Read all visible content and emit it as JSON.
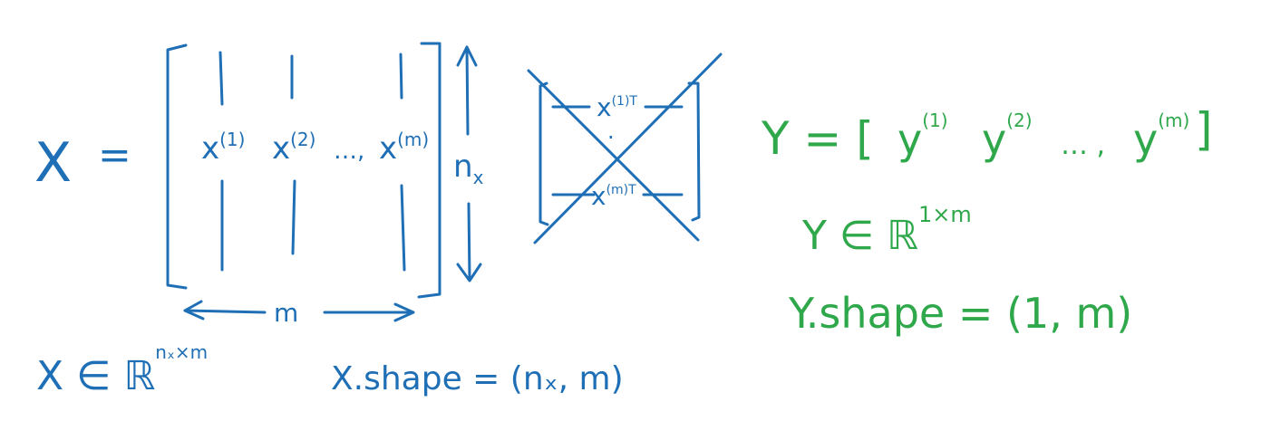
{
  "colors": {
    "blue_ink": "#1f6fb6",
    "green_ink": "#2ea84a",
    "background": "#ffffff"
  },
  "left": {
    "X": "X",
    "equals": "=",
    "col1": "x",
    "col1_sup": "(1)",
    "col2": "x",
    "col2_sup": "(2)",
    "dots": "…,",
    "colm": "x",
    "colm_sup": "(m)",
    "rows_label": "n",
    "rows_label_sub": "x",
    "cols_label": "m",
    "X_in": "X ∈ ℝ",
    "X_in_sup": "nₓ×m",
    "X_shape": "X.shape = (nₓ, m)"
  },
  "crossed": {
    "top_label": "x",
    "top_sup": "(1)T",
    "mid_dot": "·",
    "bottom_label": "x",
    "bottom_sup": "(m)T"
  },
  "right": {
    "Y_eq": "Y = [",
    "y1": "y",
    "y1_sup": "(1)",
    "y2": "y",
    "y2_sup": "(2)",
    "dots": "…  ,",
    "ym": "y",
    "ym_sup": "(m)",
    "close": "]",
    "Y_in": "Y ∈ ℝ",
    "Y_in_sup": "1×m",
    "Y_shape": "Y.shape = (1, m)"
  }
}
